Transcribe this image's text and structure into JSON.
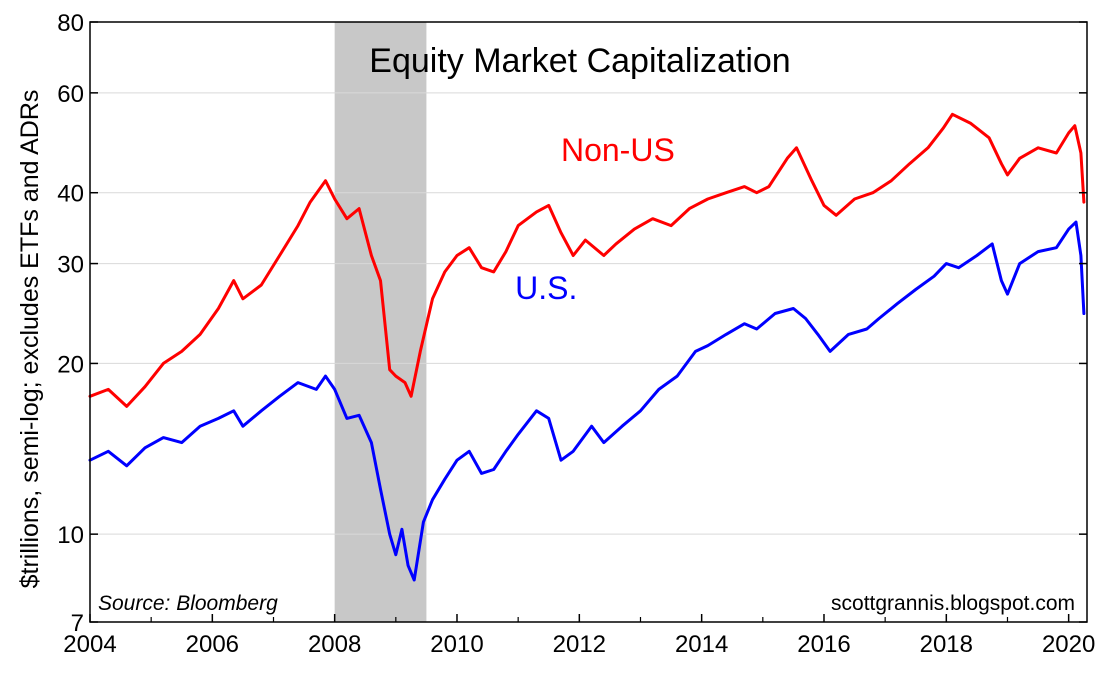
{
  "chart_data": {
    "type": "line",
    "title": "Equity Market Capitalization",
    "ylabel": "$trillions, semi-log; excludes ETFs and ADRs",
    "xlabel": "",
    "y_scale": "log",
    "ylim": [
      7,
      80
    ],
    "xlim": [
      2004,
      2020.3
    ],
    "y_ticks": [
      7,
      10,
      20,
      30,
      40,
      60,
      80
    ],
    "y_tick_labels": [
      "7",
      "10",
      "20",
      "30",
      "40",
      "60",
      "80"
    ],
    "x_ticks": [
      2004,
      2006,
      2008,
      2010,
      2012,
      2014,
      2016,
      2018,
      2020
    ],
    "x_tick_labels": [
      "2004",
      "2006",
      "2008",
      "2010",
      "2012",
      "2014",
      "2016",
      "2018",
      "2020"
    ],
    "recession_band": [
      2008.0,
      2009.5
    ],
    "grid": true,
    "series": [
      {
        "name": "Non-US",
        "color": "#ff0000",
        "points": [
          [
            2004.0,
            17.5
          ],
          [
            2004.3,
            18.0
          ],
          [
            2004.6,
            16.8
          ],
          [
            2004.9,
            18.2
          ],
          [
            2005.2,
            20.0
          ],
          [
            2005.5,
            21.0
          ],
          [
            2005.8,
            22.5
          ],
          [
            2006.1,
            25.0
          ],
          [
            2006.35,
            28.0
          ],
          [
            2006.5,
            26.0
          ],
          [
            2006.8,
            27.5
          ],
          [
            2007.1,
            31.0
          ],
          [
            2007.4,
            35.0
          ],
          [
            2007.6,
            38.5
          ],
          [
            2007.85,
            42.0
          ],
          [
            2008.0,
            39.0
          ],
          [
            2008.2,
            36.0
          ],
          [
            2008.4,
            37.5
          ],
          [
            2008.6,
            31.0
          ],
          [
            2008.75,
            28.0
          ],
          [
            2008.9,
            19.5
          ],
          [
            2009.0,
            19.0
          ],
          [
            2009.15,
            18.5
          ],
          [
            2009.25,
            17.5
          ],
          [
            2009.4,
            21.0
          ],
          [
            2009.6,
            26.0
          ],
          [
            2009.8,
            29.0
          ],
          [
            2010.0,
            31.0
          ],
          [
            2010.2,
            32.0
          ],
          [
            2010.4,
            29.5
          ],
          [
            2010.6,
            29.0
          ],
          [
            2010.8,
            31.5
          ],
          [
            2011.0,
            35.0
          ],
          [
            2011.3,
            37.0
          ],
          [
            2011.5,
            38.0
          ],
          [
            2011.7,
            34.0
          ],
          [
            2011.9,
            31.0
          ],
          [
            2012.1,
            33.0
          ],
          [
            2012.4,
            31.0
          ],
          [
            2012.6,
            32.5
          ],
          [
            2012.9,
            34.5
          ],
          [
            2013.2,
            36.0
          ],
          [
            2013.5,
            35.0
          ],
          [
            2013.8,
            37.5
          ],
          [
            2014.1,
            39.0
          ],
          [
            2014.4,
            40.0
          ],
          [
            2014.7,
            41.0
          ],
          [
            2014.9,
            40.0
          ],
          [
            2015.1,
            41.0
          ],
          [
            2015.4,
            46.0
          ],
          [
            2015.55,
            48.0
          ],
          [
            2015.8,
            42.0
          ],
          [
            2016.0,
            38.0
          ],
          [
            2016.2,
            36.5
          ],
          [
            2016.5,
            39.0
          ],
          [
            2016.8,
            40.0
          ],
          [
            2017.1,
            42.0
          ],
          [
            2017.4,
            45.0
          ],
          [
            2017.7,
            48.0
          ],
          [
            2017.95,
            52.0
          ],
          [
            2018.1,
            55.0
          ],
          [
            2018.4,
            53.0
          ],
          [
            2018.7,
            50.0
          ],
          [
            2018.9,
            45.0
          ],
          [
            2019.0,
            43.0
          ],
          [
            2019.2,
            46.0
          ],
          [
            2019.5,
            48.0
          ],
          [
            2019.8,
            47.0
          ],
          [
            2020.0,
            51.0
          ],
          [
            2020.1,
            52.5
          ],
          [
            2020.2,
            47.0
          ],
          [
            2020.25,
            38.5
          ]
        ]
      },
      {
        "name": "U.S.",
        "color": "#0000ff",
        "points": [
          [
            2004.0,
            13.5
          ],
          [
            2004.3,
            14.0
          ],
          [
            2004.6,
            13.2
          ],
          [
            2004.9,
            14.2
          ],
          [
            2005.2,
            14.8
          ],
          [
            2005.5,
            14.5
          ],
          [
            2005.8,
            15.5
          ],
          [
            2006.1,
            16.0
          ],
          [
            2006.35,
            16.5
          ],
          [
            2006.5,
            15.5
          ],
          [
            2006.8,
            16.5
          ],
          [
            2007.1,
            17.5
          ],
          [
            2007.4,
            18.5
          ],
          [
            2007.7,
            18.0
          ],
          [
            2007.85,
            19.0
          ],
          [
            2008.0,
            18.0
          ],
          [
            2008.2,
            16.0
          ],
          [
            2008.4,
            16.2
          ],
          [
            2008.6,
            14.5
          ],
          [
            2008.75,
            12.0
          ],
          [
            2008.9,
            10.0
          ],
          [
            2009.0,
            9.2
          ],
          [
            2009.1,
            10.2
          ],
          [
            2009.2,
            8.8
          ],
          [
            2009.3,
            8.3
          ],
          [
            2009.45,
            10.5
          ],
          [
            2009.6,
            11.5
          ],
          [
            2009.8,
            12.5
          ],
          [
            2010.0,
            13.5
          ],
          [
            2010.2,
            14.0
          ],
          [
            2010.4,
            12.8
          ],
          [
            2010.6,
            13.0
          ],
          [
            2010.8,
            14.0
          ],
          [
            2011.0,
            15.0
          ],
          [
            2011.3,
            16.5
          ],
          [
            2011.5,
            16.0
          ],
          [
            2011.7,
            13.5
          ],
          [
            2011.9,
            14.0
          ],
          [
            2012.2,
            15.5
          ],
          [
            2012.4,
            14.5
          ],
          [
            2012.7,
            15.5
          ],
          [
            2013.0,
            16.5
          ],
          [
            2013.3,
            18.0
          ],
          [
            2013.6,
            19.0
          ],
          [
            2013.9,
            21.0
          ],
          [
            2014.1,
            21.5
          ],
          [
            2014.4,
            22.5
          ],
          [
            2014.7,
            23.5
          ],
          [
            2014.9,
            23.0
          ],
          [
            2015.2,
            24.5
          ],
          [
            2015.5,
            25.0
          ],
          [
            2015.7,
            24.0
          ],
          [
            2015.9,
            22.5
          ],
          [
            2016.1,
            21.0
          ],
          [
            2016.4,
            22.5
          ],
          [
            2016.7,
            23.0
          ],
          [
            2016.9,
            24.0
          ],
          [
            2017.2,
            25.5
          ],
          [
            2017.5,
            27.0
          ],
          [
            2017.8,
            28.5
          ],
          [
            2018.0,
            30.0
          ],
          [
            2018.2,
            29.5
          ],
          [
            2018.5,
            31.0
          ],
          [
            2018.75,
            32.5
          ],
          [
            2018.9,
            28.0
          ],
          [
            2019.0,
            26.5
          ],
          [
            2019.2,
            30.0
          ],
          [
            2019.5,
            31.5
          ],
          [
            2019.8,
            32.0
          ],
          [
            2020.0,
            34.5
          ],
          [
            2020.12,
            35.5
          ],
          [
            2020.2,
            31.0
          ],
          [
            2020.25,
            24.5
          ]
        ]
      }
    ],
    "annotations": [
      {
        "text": "Non-US",
        "color": "#ff0000",
        "x": 2011.7,
        "y": 45.5
      },
      {
        "text": "U.S.",
        "color": "#0000ff",
        "x": 2010.95,
        "y": 26.0
      },
      {
        "text": "Source: Bloomberg",
        "style": "italic",
        "position": "bottom-left"
      },
      {
        "text": "scottgrannis.blogspot.com",
        "style": "normal",
        "position": "bottom-right"
      }
    ]
  }
}
